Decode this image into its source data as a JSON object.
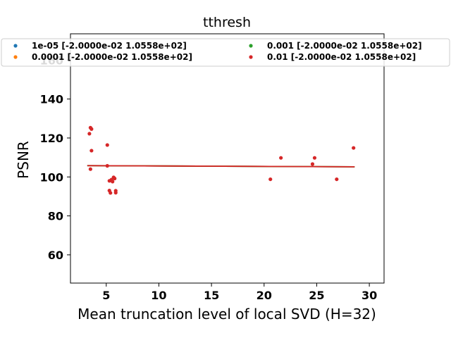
{
  "chart_data": {
    "type": "scatter",
    "title": "tthresh",
    "xlabel": "Mean truncation level of local SVD (H=32)",
    "ylabel": "PSNR",
    "xlim": [
      1.6,
      31.4
    ],
    "ylim": [
      45.5,
      173.5
    ],
    "xticks": [
      5,
      10,
      15,
      20,
      25,
      30
    ],
    "yticks": [
      60,
      80,
      100,
      120,
      140,
      160
    ],
    "grid": false,
    "legend": {
      "placement": "top",
      "columns": 2
    },
    "series": [
      {
        "name": "1e-05 [-2.0000e-02  1.0558e+02]",
        "color": "#1f77b4",
        "points": [],
        "fit": {
          "x": [
            3.2,
            28.6
          ],
          "y": [
            105.8,
            105.2
          ]
        }
      },
      {
        "name": "0.0001 [-2.0000e-02  1.0558e+02]",
        "color": "#ff7f0e",
        "points": [],
        "fit": {
          "x": [
            3.2,
            28.6
          ],
          "y": [
            105.8,
            105.2
          ]
        }
      },
      {
        "name": "0.001 [-2.0000e-02  1.0558e+02]",
        "color": "#2ca02c",
        "points": [],
        "fit": {
          "x": [
            3.2,
            28.6
          ],
          "y": [
            105.8,
            105.2
          ]
        }
      },
      {
        "name": "0.01 [-2.0000e-02  1.0558e+02]",
        "color": "#d62728",
        "points": [
          [
            3.4,
            122.2
          ],
          [
            3.5,
            125.3
          ],
          [
            3.6,
            124.6
          ],
          [
            3.6,
            113.5
          ],
          [
            3.5,
            104.0
          ],
          [
            5.1,
            116.4
          ],
          [
            5.1,
            105.7
          ],
          [
            5.3,
            93.0
          ],
          [
            5.3,
            98.0
          ],
          [
            5.4,
            91.8
          ],
          [
            5.5,
            98.6
          ],
          [
            5.6,
            97.6
          ],
          [
            5.7,
            99.8
          ],
          [
            5.8,
            99.2
          ],
          [
            5.9,
            92.9
          ],
          [
            5.9,
            91.9
          ],
          [
            20.6,
            98.8
          ],
          [
            21.6,
            109.8
          ],
          [
            24.6,
            106.6
          ],
          [
            24.8,
            109.8
          ],
          [
            26.9,
            98.8
          ],
          [
            28.5,
            114.9
          ]
        ],
        "fit": {
          "x": [
            3.2,
            28.6
          ],
          "y": [
            105.8,
            105.2
          ]
        }
      }
    ]
  }
}
